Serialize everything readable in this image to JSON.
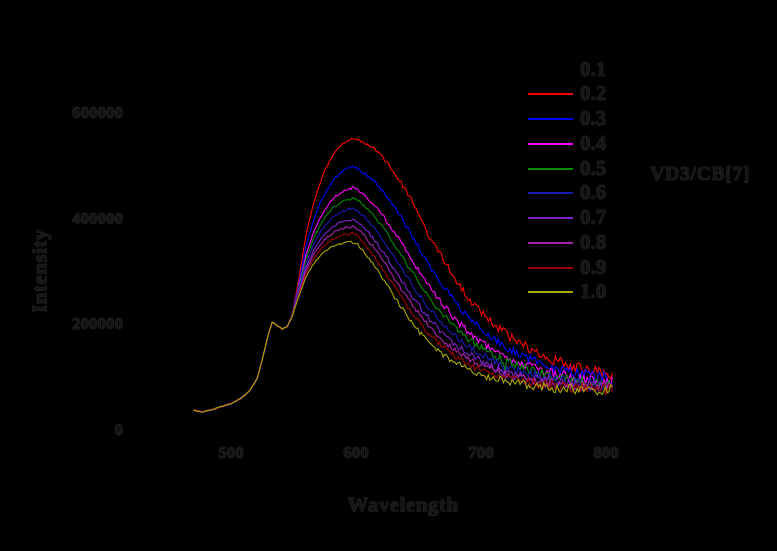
{
  "figure": {
    "background": "#000000",
    "text_ink": "#161616",
    "text_halo": "#3e3e3e"
  },
  "chart_data": {
    "type": "line",
    "title": "",
    "xlabel": "Wavelength",
    "ylabel": "Intensity",
    "x_ticks": [
      500,
      600,
      700,
      800
    ],
    "y_ticks": [
      0,
      200000,
      400000,
      600000
    ],
    "xlim": [
      440,
      840
    ],
    "ylim": [
      0,
      730000
    ],
    "grid": false,
    "legend_position": "upper right, outside plot",
    "legend_title": "VD3/CB[7]",
    "model": "intensity(wl) = baseline(wl) + weight * spread(wl) + noise; all series share rise/shoulder below 549 nm",
    "shoulder_peak": {
      "wavelength_nm": 533,
      "intensity": 204000
    },
    "main_peak_wavelength_nm": 600,
    "wavelength_nm": [
      470,
      477,
      484,
      492,
      500,
      508,
      515,
      521,
      526,
      530,
      533,
      537,
      541,
      545,
      549,
      554,
      560,
      567,
      574,
      582,
      590,
      597,
      602,
      608,
      615,
      623,
      632,
      644,
      656,
      668,
      680,
      694,
      708,
      724,
      740,
      758,
      776,
      792,
      805
    ],
    "baseline_intensity": [
      38000,
      34000,
      38000,
      44000,
      50000,
      60000,
      74000,
      98000,
      142000,
      182000,
      204000,
      198000,
      191000,
      196000,
      215000,
      252000,
      290000,
      318000,
      336000,
      348000,
      354000,
      356000,
      350000,
      333000,
      310000,
      281000,
      248000,
      204000,
      172000,
      146000,
      127000,
      110000,
      99000,
      90000,
      84000,
      80000,
      77000,
      76000,
      75000
    ],
    "spread_intensity": [
      0,
      0,
      0,
      0,
      0,
      0,
      0,
      0,
      0,
      0,
      0,
      0,
      0,
      0,
      4000,
      30000,
      80000,
      120000,
      150000,
      175000,
      190000,
      197000,
      200000,
      210000,
      222000,
      230000,
      235000,
      233000,
      205000,
      185000,
      155000,
      128000,
      105000,
      85000,
      68000,
      52000,
      42000,
      35000,
      30000
    ],
    "series": [
      {
        "label": "0.1",
        "color": "#000000",
        "weight": 1.12,
        "peak_intensity": 574000
      },
      {
        "label": "0.2",
        "color": "#FF0000",
        "weight": 1.0,
        "peak_intensity": 553000
      },
      {
        "label": "0.3",
        "color": "#0000FF",
        "weight": 0.72,
        "peak_intensity": 497000
      },
      {
        "label": "0.4",
        "color": "#FF00FF",
        "weight": 0.52,
        "peak_intensity": 458000
      },
      {
        "label": "0.5",
        "color": "#008C00",
        "weight": 0.42,
        "peak_intensity": 437000
      },
      {
        "label": "0.6",
        "color": "#1A1AB4",
        "weight": 0.32,
        "peak_intensity": 416000
      },
      {
        "label": "0.7",
        "color": "#7B22CC",
        "weight": 0.22,
        "peak_intensity": 396000
      },
      {
        "label": "0.8",
        "color": "#AA22AA",
        "weight": 0.15,
        "peak_intensity": 382000
      },
      {
        "label": "0.9",
        "color": "#A00000",
        "weight": 0.08,
        "peak_intensity": 368000
      },
      {
        "label": "1.0",
        "color": "#A8A800",
        "weight": 0.0,
        "peak_intensity": 356000
      }
    ]
  }
}
